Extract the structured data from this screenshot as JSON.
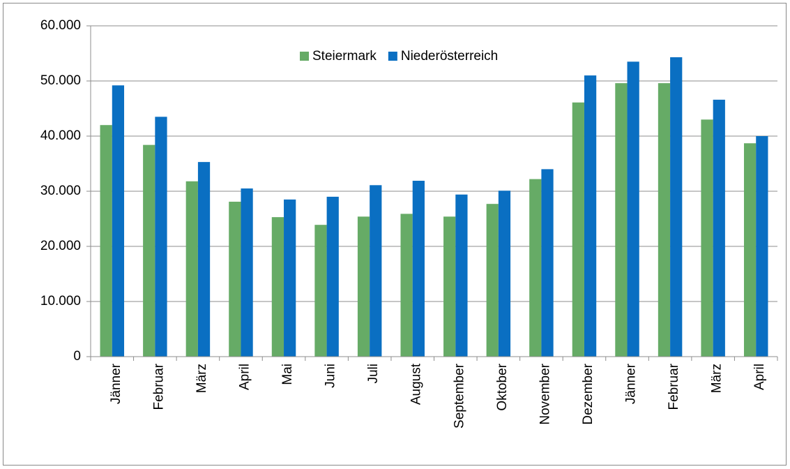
{
  "chart_data": {
    "type": "bar",
    "categories": [
      "Jänner",
      "Februar",
      "März",
      "April",
      "Mai",
      "Juni",
      "Juli",
      "August",
      "September",
      "Oktober",
      "November",
      "Dezember",
      "Jänner",
      "Februar",
      "März",
      "April"
    ],
    "series": [
      {
        "name": "Steiermark",
        "color": "#66ab66",
        "values": [
          42000,
          38400,
          31800,
          28100,
          25300,
          23900,
          25400,
          25900,
          25400,
          27700,
          32200,
          46100,
          49600,
          49600,
          43000,
          38700
        ]
      },
      {
        "name": "Niederösterreich",
        "color": "#0a6fc2",
        "values": [
          49200,
          43500,
          35300,
          30500,
          28500,
          29000,
          31100,
          31900,
          29400,
          30100,
          34000,
          51000,
          53500,
          54300,
          46600,
          40000
        ]
      }
    ],
    "ylim": [
      0,
      60000
    ],
    "yticks": [
      0,
      {
        "value": 10000,
        "label": "10.000"
      },
      {
        "value": 20000,
        "label": "20.000"
      },
      {
        "value": 30000,
        "label": "30.000"
      },
      {
        "value": 40000,
        "label": "40.000"
      },
      {
        "value": 50000,
        "label": "50.000"
      },
      {
        "value": 60000,
        "label": "60.000"
      }
    ],
    "grid": true,
    "legend": "top"
  }
}
